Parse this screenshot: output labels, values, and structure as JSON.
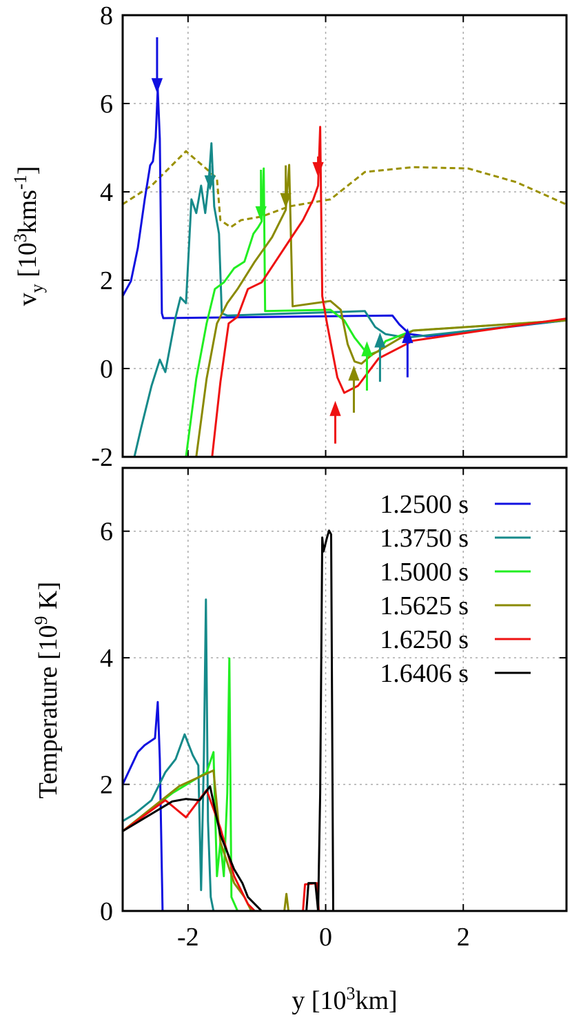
{
  "chart_data": [
    {
      "type": "line",
      "ylabel": [
        {
          "text": "v"
        },
        {
          "text": "y",
          "script": "sub"
        },
        {
          "text": " [10"
        },
        {
          "text": "3",
          "script": "super"
        },
        {
          "text": "kms"
        },
        {
          "text": "-1",
          "script": "super"
        },
        {
          "text": "]"
        }
      ],
      "xlim": [
        -2.95,
        3.5
      ],
      "ylim": [
        -2,
        8
      ],
      "xticks": [
        -2,
        0,
        2
      ],
      "yticks": [
        -2,
        0,
        2,
        4,
        6,
        8
      ],
      "xticklabels": false,
      "grid": true,
      "series": [
        {
          "color": "#9a9000",
          "dash": true,
          "x": [
            -2.95,
            -2.53,
            -2.03,
            -1.68,
            -1.58,
            -1.53,
            -1.38,
            -1.23,
            -0.93,
            -0.53,
            0.07,
            0.57,
            1.27,
            2.07,
            2.77,
            3.49
          ],
          "values": [
            3.72,
            4.14,
            4.92,
            4.45,
            4.3,
            3.36,
            3.2,
            3.36,
            3.44,
            3.67,
            3.83,
            4.45,
            4.56,
            4.53,
            4.22,
            3.72
          ]
        },
        {
          "color": "#1010e0",
          "x": [
            -2.95,
            -2.83,
            -2.73,
            -2.63,
            -2.55,
            -2.51,
            -2.47,
            -2.44,
            -2.41,
            -2.38,
            -2.36,
            0.97,
            1.07,
            1.22,
            1.47,
            3.49
          ],
          "values": [
            1.64,
            1.98,
            2.73,
            3.83,
            4.6,
            4.69,
            5.23,
            6.33,
            5.2,
            1.25,
            1.14,
            1.2,
            1.0,
            0.78,
            0.73,
            1.09
          ]
        },
        {
          "color": "#168a8a",
          "x": [
            -2.78,
            -2.68,
            -2.53,
            -2.41,
            -2.33,
            -2.18,
            -2.11,
            -2.03,
            -1.95,
            -1.88,
            -1.81,
            -1.75,
            -1.7,
            -1.66,
            -1.62,
            -1.55,
            -1.51,
            -1.43,
            0.57,
            0.72,
            0.87,
            1.17,
            3.49
          ],
          "values": [
            -2,
            -1.33,
            -0.39,
            0.2,
            -0.08,
            1.17,
            1.61,
            1.48,
            3.83,
            3.52,
            4.14,
            3.52,
            4.22,
            5.1,
            3.67,
            3.05,
            1.25,
            1.2,
            1.3,
            0.94,
            0.78,
            0.7,
            1.09
          ]
        },
        {
          "color": "#22ee22",
          "x": [
            -2.03,
            -1.88,
            -1.73,
            -1.61,
            -1.48,
            -1.33,
            -1.18,
            -1.05,
            -0.98,
            -0.93,
            -0.9,
            -0.88,
            0.07,
            0.27,
            0.42,
            0.62,
            0.77,
            0.87,
            1.27,
            3.49
          ],
          "values": [
            -2,
            -0.23,
            1.02,
            1.8,
            1.95,
            2.27,
            2.42,
            3.05,
            3.2,
            3.33,
            4.53,
            1.3,
            1.33,
            1.09,
            0.7,
            0.31,
            0.39,
            0.62,
            0.86,
            1.09
          ]
        },
        {
          "color": "#8a8a00",
          "x": [
            -1.88,
            -1.73,
            -1.58,
            -1.43,
            -1.28,
            -1.03,
            -0.78,
            -0.58,
            -0.53,
            -0.48,
            0.07,
            0.22,
            0.32,
            0.42,
            0.52,
            0.67,
            1.27,
            3.49
          ],
          "values": [
            -2,
            -0.23,
            1.02,
            1.48,
            1.8,
            2.42,
            2.97,
            3.59,
            4.61,
            1.41,
            1.53,
            1.33,
            0.55,
            0.16,
            0.11,
            0.31,
            0.86,
            1.09
          ]
        },
        {
          "color": "#ee1111",
          "x": [
            -1.65,
            -1.53,
            -1.41,
            -1.28,
            -1.13,
            -0.93,
            -0.73,
            -0.53,
            -0.33,
            -0.18,
            -0.11,
            -0.08,
            -0.05,
            0.02,
            0.17,
            0.27,
            0.47,
            0.77,
            1.27,
            2.27,
            3.49
          ],
          "values": [
            -2,
            -0.31,
            1.02,
            1.17,
            1.8,
            1.95,
            2.42,
            2.89,
            3.36,
            3.83,
            4.14,
            5.47,
            1.64,
            1.02,
            -0.2,
            -0.55,
            -0.39,
            0.23,
            0.63,
            0.86,
            1.13
          ]
        }
      ],
      "arrows": [
        {
          "x": -2.45,
          "from": 7.5,
          "to": 6.3,
          "color": "#1010e0"
        },
        {
          "x": -1.68,
          "from": 4.6,
          "to": 4.1,
          "color": "#168a8a"
        },
        {
          "x": -0.94,
          "from": 4.5,
          "to": 3.4,
          "color": "#22ee22"
        },
        {
          "x": -0.58,
          "from": 4.6,
          "to": 3.7,
          "color": "#8a8a00"
        },
        {
          "x": -0.11,
          "from": 4.8,
          "to": 4.4,
          "color": "#ee1111"
        },
        {
          "x": 1.19,
          "from": -0.2,
          "to": 0.85,
          "color": "#1010e0"
        },
        {
          "x": 0.79,
          "from": -0.3,
          "to": 0.75,
          "color": "#168a8a"
        },
        {
          "x": 0.6,
          "from": -0.5,
          "to": 0.55,
          "color": "#22ee22"
        },
        {
          "x": 0.41,
          "from": -1.0,
          "to": 0.0,
          "color": "#8a8a00"
        },
        {
          "x": 0.14,
          "from": -1.7,
          "to": -0.8,
          "color": "#ee1111"
        }
      ]
    },
    {
      "type": "line",
      "ylabel": [
        {
          "text": "Temperature [10"
        },
        {
          "text": "9",
          "script": "super"
        },
        {
          "text": " K]"
        }
      ],
      "xlabel": [
        {
          "text": "y [10"
        },
        {
          "text": "3",
          "script": "super"
        },
        {
          "text": "km]"
        }
      ],
      "xlim": [
        -2.95,
        3.5
      ],
      "ylim": [
        0,
        7
      ],
      "xticks": [
        -2,
        0,
        2
      ],
      "yticks": [
        0,
        2,
        4,
        6
      ],
      "xticklabels": true,
      "grid": true,
      "legend": "upper right",
      "series": [
        {
          "name": "1.2500 s",
          "color": "#1010e0",
          "x": [
            -2.95,
            -2.73,
            -2.63,
            -2.48,
            -2.44,
            -2.41,
            -2.37,
            3.49
          ],
          "values": [
            2.0,
            2.51,
            2.62,
            2.73,
            3.3,
            2.4,
            0,
            0
          ]
        },
        {
          "name": "1.3750 s",
          "color": "#168a8a",
          "x": [
            -2.95,
            -2.78,
            -2.53,
            -2.33,
            -2.18,
            -2.05,
            -1.93,
            -1.85,
            -1.81,
            -1.77,
            -1.74,
            -1.71,
            -1.67,
            -1.63,
            3.49
          ],
          "values": [
            1.42,
            1.53,
            1.75,
            2.19,
            2.4,
            2.79,
            2.46,
            2.3,
            0.33,
            2.4,
            4.92,
            1.42,
            0.22,
            0,
            0
          ]
        },
        {
          "name": "1.5000 s",
          "color": "#22ee22",
          "x": [
            -2.95,
            -2.23,
            -1.73,
            -1.63,
            -1.58,
            -1.53,
            -1.48,
            -1.43,
            -1.4,
            -1.37,
            -1.28,
            3.49
          ],
          "values": [
            1.26,
            1.86,
            2.19,
            2.51,
            0.55,
            1.09,
            0.55,
            1.86,
            3.99,
            0.22,
            0,
            0
          ]
        },
        {
          "name": "1.5625 s",
          "color": "#8a8a00",
          "x": [
            -2.95,
            -2.13,
            -1.63,
            -1.53,
            -1.33,
            -1.18,
            -1.08,
            -0.6,
            -0.57,
            -0.54,
            3.49
          ],
          "values": [
            1.26,
            1.97,
            2.22,
            1.09,
            0.44,
            0.22,
            0,
            0,
            0.27,
            0,
            0
          ]
        },
        {
          "name": "1.6250 s",
          "color": "#ee1111",
          "x": [
            -2.95,
            -2.33,
            -2.03,
            -1.73,
            -1.53,
            -1.33,
            -1.13,
            -1.03,
            -0.33,
            -0.3,
            -0.13,
            -0.1,
            3.49
          ],
          "values": [
            1.26,
            1.75,
            1.48,
            1.91,
            1.31,
            0.55,
            0.11,
            0,
            0,
            0.42,
            0.44,
            0,
            0
          ]
        },
        {
          "name": "1.6406 s",
          "color": "#000000",
          "x": [
            -2.95,
            -2.23,
            -2.03,
            -1.83,
            -1.68,
            -1.53,
            -1.33,
            -1.21,
            -1.13,
            -0.93,
            -0.28,
            -0.25,
            -0.15,
            -0.11,
            -0.08,
            -0.05,
            -0.03,
            0.02,
            0.05,
            0.08,
            0.11,
            3.49
          ],
          "values": [
            1.26,
            1.73,
            1.77,
            1.75,
            1.97,
            1.2,
            0.66,
            0.44,
            0.22,
            0,
            0,
            0.44,
            0.44,
            0,
            1.86,
            5.9,
            5.68,
            5.9,
            6.01,
            5.95,
            0,
            0
          ]
        }
      ]
    }
  ]
}
